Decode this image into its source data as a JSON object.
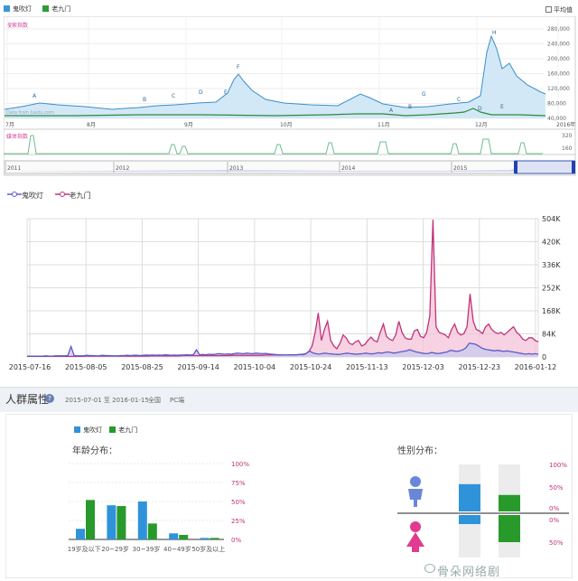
{
  "top_legend": {
    "series": [
      {
        "name": "鬼吹灯",
        "color": "#3b95d8"
      },
      {
        "name": "老九门",
        "color": "#2e9a3a"
      }
    ],
    "avg_label": "平均值"
  },
  "search_index": {
    "label": "搜索指数",
    "y_ticks": [
      "280,000",
      "240,000",
      "200,000",
      "160,000",
      "120,000",
      "80,000",
      "40,000"
    ],
    "x_ticks": [
      "7月",
      "8月",
      "9月",
      "10月",
      "11月",
      "12月",
      "2016年1月"
    ],
    "annotations": [
      "A",
      "B",
      "C",
      "D",
      "E",
      "F",
      "A",
      "B",
      "G",
      "C",
      "D",
      "E",
      "H"
    ],
    "watermark_text": "Data from baidu.com"
  },
  "media_index": {
    "label": "媒体指数",
    "y_ticks": [
      "320",
      "160"
    ]
  },
  "timeline": {
    "years": [
      "2011",
      "2012",
      "2013",
      "2014",
      "2015"
    ]
  },
  "chart_data": {
    "type": "area",
    "title": "",
    "legend_position": "top-left",
    "x_tick_labels": [
      "2015-07-16",
      "2015-08-05",
      "2015-08-25",
      "2015-09-14",
      "2015-10-04",
      "2015-10-24",
      "2015-11-13",
      "2015-12-03",
      "2015-12-23",
      "2016-01-12"
    ],
    "y_tick_labels": [
      "504K",
      "420K",
      "336K",
      "252K",
      "168K",
      "84K",
      "0"
    ],
    "ylim": [
      0,
      504000
    ],
    "grid": true,
    "series": [
      {
        "name": "鬼吹灯",
        "color": "#5b5bc8",
        "fill": "#c9c9ee",
        "values": [
          3000,
          3000,
          3000,
          3000,
          3000,
          3000,
          4000,
          3000,
          3000,
          4000,
          4000,
          4000,
          4000,
          5000,
          38000,
          5000,
          4000,
          4000,
          4000,
          6000,
          5000,
          5000,
          4000,
          4000,
          6000,
          5000,
          5000,
          4000,
          4000,
          4000,
          5000,
          5000,
          6000,
          5000,
          6000,
          6000,
          5000,
          6000,
          7000,
          6000,
          7000,
          6000,
          7000,
          6000,
          8000,
          7000,
          6000,
          7000,
          6000,
          7000,
          7000,
          8000,
          7000,
          8000,
          26000,
          8000,
          9000,
          8000,
          10000,
          9000,
          10000,
          12000,
          11000,
          10000,
          11000,
          10000,
          12000,
          14000,
          13000,
          12000,
          14000,
          13000,
          12000,
          14000,
          13000,
          12000,
          13000,
          11000,
          10000,
          9000,
          8000,
          8000,
          7000,
          7000,
          8000,
          7000,
          8000,
          9000,
          8000,
          12000,
          22000,
          15000,
          12000,
          10000,
          12000,
          14000,
          12000,
          11000,
          10000,
          9000,
          10000,
          12000,
          14000,
          12000,
          11000,
          10000,
          11000,
          12000,
          14000,
          12000,
          11000,
          13000,
          15000,
          14000,
          16000,
          18000,
          16000,
          14000,
          16000,
          18000,
          20000,
          22000,
          26000,
          22000,
          18000,
          16000,
          14000,
          12000,
          13000,
          16000,
          14000,
          12000,
          14000,
          16000,
          18000,
          24000,
          22000,
          20000,
          22000,
          26000,
          34000,
          50000,
          48000,
          46000,
          40000,
          32000,
          28000,
          26000,
          24000,
          22000,
          24000,
          22000,
          20000,
          22000,
          20000,
          18000,
          16000,
          14000,
          12000,
          10000,
          12000,
          10000,
          12000,
          10000
        ]
      },
      {
        "name": "老九门",
        "color": "#c2327a",
        "fill": "#f3c3d8",
        "values": [
          2000,
          2000,
          2000,
          2000,
          2000,
          2000,
          2000,
          2000,
          2000,
          2000,
          2000,
          2000,
          2000,
          2000,
          2000,
          2000,
          2000,
          2000,
          2000,
          3000,
          3000,
          3000,
          3000,
          3000,
          3000,
          3000,
          3000,
          3000,
          3000,
          3000,
          3000,
          3000,
          3000,
          3000,
          3000,
          3000,
          3000,
          3000,
          3000,
          3000,
          4000,
          4000,
          4000,
          4000,
          4000,
          4000,
          4000,
          4000,
          4000,
          4000,
          5000,
          5000,
          5000,
          5000,
          5000,
          5000,
          5000,
          5000,
          5000,
          5000,
          5000,
          5000,
          5000,
          5000,
          5000,
          5000,
          6000,
          6000,
          6000,
          6000,
          6000,
          6000,
          6000,
          6000,
          6000,
          6000,
          6000,
          7000,
          7000,
          7000,
          7000,
          7000,
          7000,
          7000,
          7000,
          8000,
          8000,
          8000,
          9000,
          10000,
          12000,
          20000,
          40000,
          90000,
          160000,
          60000,
          100000,
          130000,
          60000,
          40000,
          30000,
          50000,
          80000,
          70000,
          50000,
          45000,
          55000,
          60000,
          40000,
          45000,
          60000,
          72000,
          60000,
          55000,
          90000,
          120000,
          75000,
          65000,
          60000,
          80000,
          130000,
          90000,
          70000,
          65000,
          65000,
          95000,
          100000,
          75000,
          70000,
          90000,
          150000,
          500000,
          110000,
          90000,
          85000,
          80000,
          70000,
          100000,
          120000,
          90000,
          80000,
          85000,
          110000,
          230000,
          130000,
          100000,
          95000,
          85000,
          110000,
          120000,
          100000,
          90000,
          85000,
          90000,
          80000,
          90000,
          100000,
          110000,
          90000,
          80000,
          65000,
          60000,
          70000,
          70000,
          60000,
          55000
        ]
      }
    ]
  },
  "section": {
    "title": "人群属性",
    "help": "?",
    "date_range": "2015-07-01 至 2016-01-15",
    "scope": "全国",
    "device": "PC端"
  },
  "demographics": {
    "legend": [
      {
        "name": "鬼吹灯",
        "color": "#2f93da"
      },
      {
        "name": "老九门",
        "color": "#279a2b"
      }
    ],
    "age_title": "年龄分布：",
    "gender_title": "性别分布：",
    "age_chart": {
      "type": "bar",
      "categories": [
        "19岁及以下",
        "20~29岁",
        "30~39岁",
        "40~49岁",
        "50岁及以上"
      ],
      "ylim": [
        0,
        100
      ],
      "y_tick_labels": [
        "100%",
        "75%",
        "50%",
        "25%",
        "0%"
      ],
      "series": [
        {
          "name": "鬼吹灯",
          "values": [
            14,
            45,
            50,
            8,
            2
          ]
        },
        {
          "name": "老九门",
          "values": [
            52,
            44,
            21,
            6,
            2
          ]
        }
      ]
    },
    "gender_chart": {
      "type": "bar",
      "y_tick_labels_male": [
        "100%",
        "50%",
        "0%"
      ],
      "y_tick_labels_female": [
        "0%",
        "50%"
      ],
      "male": {
        "鬼吹灯": 0.58,
        "老九门": 0.35
      },
      "female": {
        "鬼吹灯": 0.2,
        "老九门": 0.6
      }
    }
  },
  "watermark": "骨朵网络剧"
}
